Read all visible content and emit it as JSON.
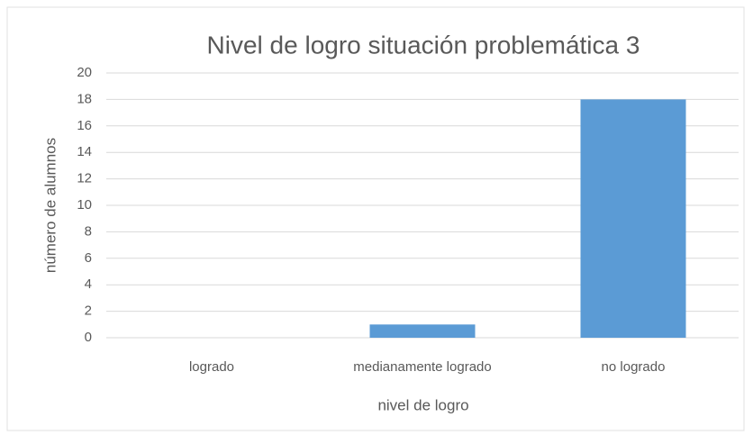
{
  "chart_data": {
    "type": "bar",
    "title": "Nivel de logro situación problemática 3",
    "x_label": "nivel de logro",
    "y_label": "número de alumnos",
    "categories": [
      "logrado",
      "medianamente logrado",
      "no logrado"
    ],
    "values": [
      0,
      1,
      18
    ],
    "color": "#5b9bd5",
    "ylim": [
      0,
      20
    ],
    "yticks": [
      0,
      2,
      4,
      6,
      8,
      10,
      12,
      14,
      16,
      18,
      20
    ],
    "grid": true
  }
}
